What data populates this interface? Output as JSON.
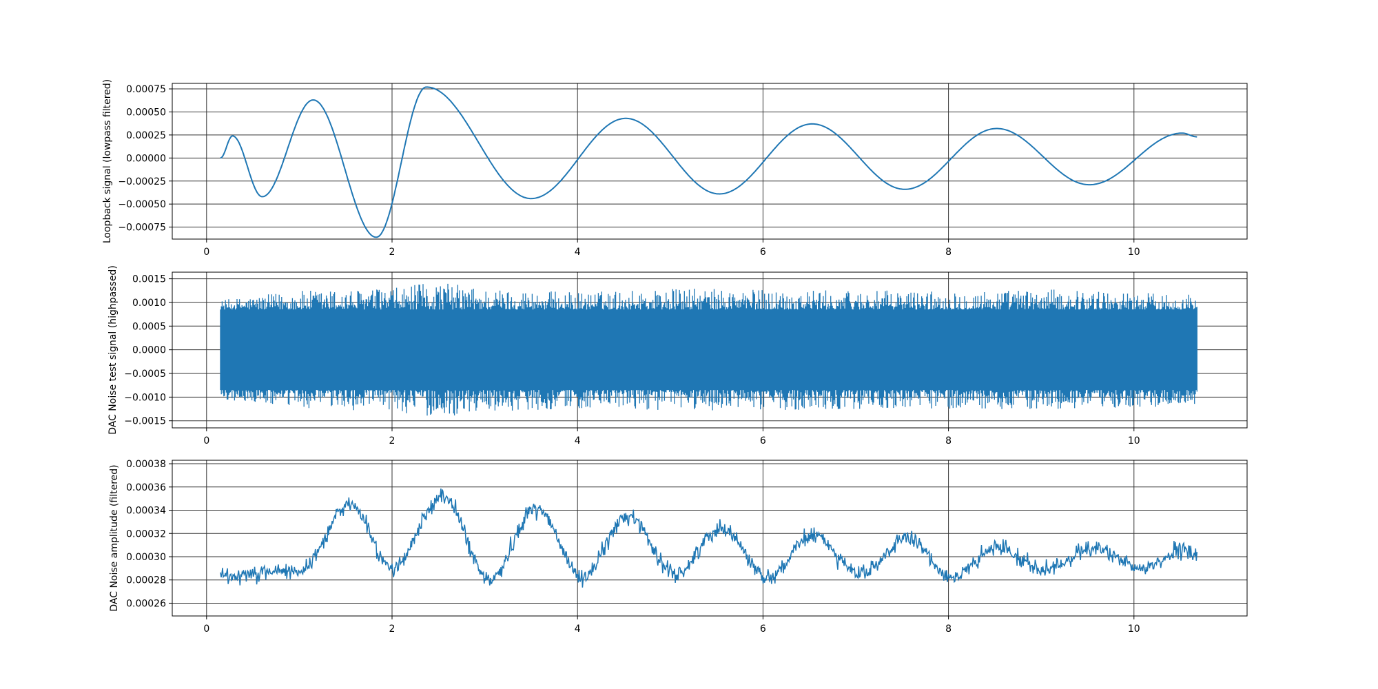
{
  "figure": {
    "line_color": "#1f77b4",
    "grid_color": "#333333",
    "axis_color": "#000000"
  },
  "chart_data": [
    {
      "type": "line",
      "ylabel": "Loopback signal (lowpass filtered)",
      "xlabel": "",
      "grid": true,
      "xlim": [
        -0.37,
        11.22
      ],
      "ylim": [
        -0.00088,
        0.00081
      ],
      "x_ticks": [
        0,
        2,
        4,
        6,
        8,
        10
      ],
      "x_tick_labels": [
        "0",
        "2",
        "4",
        "6",
        "8",
        "10"
      ],
      "y_ticks": [
        0.00075,
        0.0005,
        0.00025,
        0.0,
        -0.00025,
        -0.0005,
        -0.00075
      ],
      "y_tick_labels": [
        "0.00075",
        "0.00050",
        "0.00025",
        "0.00000",
        "−0.00025",
        "−0.00050",
        "−0.00075"
      ],
      "series": [
        {
          "style": "smooth",
          "x": [
            0.15,
            0.28,
            0.6,
            1.15,
            1.83,
            2.37,
            3.5,
            4.52,
            5.53,
            6.53,
            7.53,
            8.52,
            9.52,
            10.52,
            10.68
          ],
          "y": [
            0.0,
            0.00024,
            -0.00042,
            0.00063,
            -0.00086,
            0.00077,
            -0.00044,
            0.00043,
            -0.00039,
            0.00037,
            -0.00034,
            0.00032,
            -0.00029,
            0.00027,
            0.00023
          ]
        }
      ]
    },
    {
      "type": "line",
      "ylabel": "DAC Noise test signal (highpassed)",
      "xlabel": "",
      "grid": true,
      "xlim": [
        -0.37,
        11.22
      ],
      "ylim": [
        -0.00165,
        0.00164
      ],
      "x_ticks": [
        0,
        2,
        4,
        6,
        8,
        10
      ],
      "x_tick_labels": [
        "0",
        "2",
        "4",
        "6",
        "8",
        "10"
      ],
      "y_ticks": [
        0.0015,
        0.001,
        0.0005,
        0.0,
        -0.0005,
        -0.001,
        -0.0015
      ],
      "y_tick_labels": [
        "0.0015",
        "0.0010",
        "0.0005",
        "0.0000",
        "−0.0005",
        "−0.0010",
        "−0.0015"
      ],
      "series": [
        {
          "style": "noise",
          "x_start": 0.15,
          "x_end": 10.68,
          "dense_band": [
            -0.00085,
            0.00085
          ],
          "envelope_x": [
            0.15,
            1.0,
            2.0,
            2.5,
            3.0,
            4.0,
            5.0,
            6.0,
            7.0,
            8.0,
            9.0,
            10.0,
            10.68
          ],
          "envelope_max": [
            0.00105,
            0.00125,
            0.0013,
            0.00145,
            0.0013,
            0.00122,
            0.0013,
            0.00128,
            0.00125,
            0.00125,
            0.00128,
            0.00122,
            0.00118
          ],
          "envelope_min": [
            -0.00105,
            -0.00125,
            -0.0013,
            -0.00145,
            -0.0013,
            -0.00125,
            -0.00128,
            -0.00128,
            -0.00125,
            -0.00125,
            -0.00128,
            -0.00122,
            -0.00118
          ]
        }
      ]
    },
    {
      "type": "line",
      "ylabel": "DAC Noise amplitude (filtered)",
      "xlabel": "",
      "grid": true,
      "xlim": [
        -0.37,
        11.22
      ],
      "ylim": [
        0.000249,
        0.000383
      ],
      "x_ticks": [
        0,
        2,
        4,
        6,
        8,
        10
      ],
      "x_tick_labels": [
        "0",
        "2",
        "4",
        "6",
        "8",
        "10"
      ],
      "y_ticks": [
        0.00038,
        0.00036,
        0.00034,
        0.00032,
        0.0003,
        0.00028,
        0.00026
      ],
      "y_tick_labels": [
        "0.00038",
        "0.00036",
        "0.00034",
        "0.00032",
        "0.00030",
        "0.00028",
        "0.00026"
      ],
      "series": [
        {
          "style": "noisy-trend",
          "x": [
            0.15,
            0.6,
            1.0,
            1.55,
            2.0,
            2.55,
            3.05,
            3.55,
            4.05,
            4.55,
            5.05,
            5.55,
            6.05,
            6.55,
            7.05,
            7.55,
            8.05,
            8.55,
            9.05,
            9.55,
            10.05,
            10.55,
            10.68
          ],
          "y": [
            0.000283,
            0.000287,
            0.000288,
            0.000345,
            0.00029,
            0.000352,
            0.00028,
            0.000342,
            0.000283,
            0.000335,
            0.000285,
            0.000325,
            0.000283,
            0.000318,
            0.000285,
            0.000315,
            0.000283,
            0.000308,
            0.000288,
            0.000308,
            0.00029,
            0.000305,
            0.000302
          ],
          "noise_amplitude": 1.1e-05
        }
      ]
    }
  ]
}
